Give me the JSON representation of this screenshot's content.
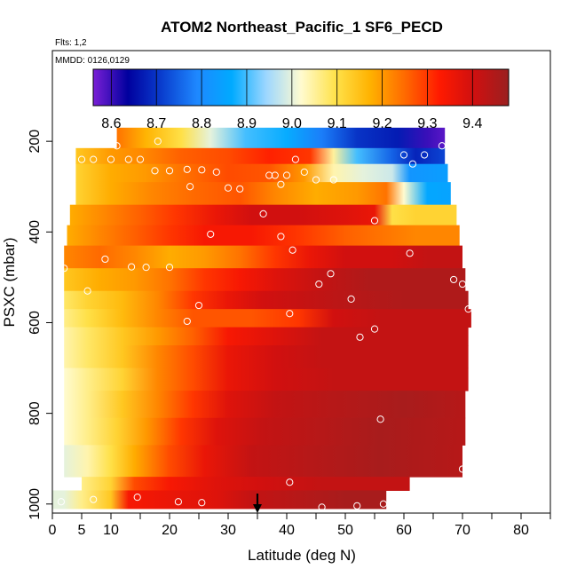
{
  "chart_data": {
    "type": "heatmap",
    "title": "ATOM2 Northeast_Pacific_1 SF6_PECD",
    "flts_label": "Flts: 1,2",
    "mmdd_label": "MMDD: 0126,0129",
    "xlabel": "Latitude (deg N)",
    "ylabel": "PSXC (mbar)",
    "xlim": [
      0,
      85
    ],
    "ylim": [
      1020,
      0
    ],
    "x_ticks": [
      0,
      5,
      10,
      20,
      30,
      40,
      50,
      60,
      70,
      80
    ],
    "y_ticks": [
      200,
      400,
      600,
      800,
      1000
    ],
    "arrow_latitude": 35,
    "colorbar": {
      "range": [
        8.56,
        9.48
      ],
      "ticks": [
        8.6,
        8.7,
        8.8,
        8.9,
        9.0,
        9.1,
        9.2,
        9.3,
        9.4
      ],
      "colors": [
        "#7a1fd6",
        "#00009e",
        "#0a3fcf",
        "#1e88ff",
        "#00aaff",
        "#9dd7ff",
        "#fffbd0",
        "#ffe24a",
        "#ffb200",
        "#ff6a00",
        "#ff1a00",
        "#cf1010",
        "#9a2020"
      ]
    },
    "rows": [
      {
        "p_top": 170,
        "p_bot": 215,
        "lat_start": 11,
        "lat_end": 67,
        "stops": [
          [
            11,
            9.24
          ],
          [
            16,
            9.17
          ],
          [
            22,
            9.1
          ],
          [
            27,
            9.0
          ],
          [
            33,
            8.9
          ],
          [
            40,
            8.87
          ],
          [
            46,
            8.78
          ],
          [
            52,
            8.7
          ],
          [
            59,
            8.67
          ],
          [
            64,
            8.6
          ],
          [
            67,
            8.58
          ]
        ]
      },
      {
        "p_top": 215,
        "p_bot": 250,
        "lat_start": 4,
        "lat_end": 67,
        "stops": [
          [
            4,
            9.14
          ],
          [
            10,
            9.2
          ],
          [
            16,
            9.22
          ],
          [
            22,
            9.26
          ],
          [
            30,
            9.28
          ],
          [
            37,
            9.32
          ],
          [
            44,
            9.3
          ],
          [
            48,
            9.05
          ],
          [
            52,
            8.9
          ],
          [
            58,
            8.75
          ],
          [
            62,
            8.68
          ],
          [
            67,
            8.72
          ]
        ]
      },
      {
        "p_top": 250,
        "p_bot": 290,
        "lat_start": 4,
        "lat_end": 67.5,
        "stops": [
          [
            4,
            9.12
          ],
          [
            10,
            9.18
          ],
          [
            16,
            9.2
          ],
          [
            22,
            9.24
          ],
          [
            30,
            9.28
          ],
          [
            37,
            9.27
          ],
          [
            43,
            9.2
          ],
          [
            48,
            9.04
          ],
          [
            53,
            9.0
          ],
          [
            58,
            8.98
          ],
          [
            61,
            8.82
          ],
          [
            67.5,
            8.84
          ]
        ]
      },
      {
        "p_top": 290,
        "p_bot": 340,
        "lat_start": 4,
        "lat_end": 68,
        "stops": [
          [
            4,
            9.12
          ],
          [
            10,
            9.18
          ],
          [
            17,
            9.22
          ],
          [
            24,
            9.25
          ],
          [
            32,
            9.27
          ],
          [
            38,
            9.22
          ],
          [
            45,
            9.18
          ],
          [
            52,
            9.2
          ],
          [
            57,
            9.24
          ],
          [
            60,
            9.02
          ],
          [
            64,
            8.86
          ],
          [
            68,
            8.85
          ]
        ]
      },
      {
        "p_top": 340,
        "p_bot": 385,
        "lat_start": 3,
        "lat_end": 69,
        "stops": [
          [
            3,
            9.18
          ],
          [
            9,
            9.22
          ],
          [
            15,
            9.26
          ],
          [
            21,
            9.3
          ],
          [
            28,
            9.36
          ],
          [
            34,
            9.4
          ],
          [
            42,
            9.4
          ],
          [
            50,
            9.38
          ],
          [
            55,
            9.36
          ],
          [
            58,
            9.1
          ],
          [
            62,
            9.12
          ],
          [
            69,
            9.12
          ]
        ]
      },
      {
        "p_top": 385,
        "p_bot": 430,
        "lat_start": 2.5,
        "lat_end": 69.5,
        "stops": [
          [
            2.5,
            9.18
          ],
          [
            8,
            9.22
          ],
          [
            14,
            9.26
          ],
          [
            20,
            9.3
          ],
          [
            26,
            9.34
          ],
          [
            34,
            9.34
          ],
          [
            42,
            9.3
          ],
          [
            50,
            9.26
          ],
          [
            56,
            9.24
          ],
          [
            62,
            9.22
          ],
          [
            69.5,
            9.22
          ]
        ]
      },
      {
        "p_top": 430,
        "p_bot": 480,
        "lat_start": 2,
        "lat_end": 70,
        "stops": [
          [
            2,
            9.22
          ],
          [
            8,
            9.25
          ],
          [
            14,
            9.22
          ],
          [
            20,
            9.18
          ],
          [
            26,
            9.2
          ],
          [
            32,
            9.24
          ],
          [
            38,
            9.3
          ],
          [
            44,
            9.36
          ],
          [
            50,
            9.4
          ],
          [
            58,
            9.4
          ],
          [
            64,
            9.42
          ],
          [
            70,
            9.42
          ]
        ]
      },
      {
        "p_top": 480,
        "p_bot": 530,
        "lat_start": 2,
        "lat_end": 70.5,
        "stops": [
          [
            2,
            9.14
          ],
          [
            8,
            9.18
          ],
          [
            14,
            9.2
          ],
          [
            20,
            9.24
          ],
          [
            26,
            9.3
          ],
          [
            32,
            9.34
          ],
          [
            38,
            9.38
          ],
          [
            46,
            9.42
          ],
          [
            54,
            9.45
          ],
          [
            62,
            9.45
          ],
          [
            70.5,
            9.45
          ]
        ]
      },
      {
        "p_top": 530,
        "p_bot": 570,
        "lat_start": 2,
        "lat_end": 71,
        "stops": [
          [
            2,
            9.08
          ],
          [
            6,
            9.12
          ],
          [
            12,
            9.16
          ],
          [
            18,
            9.22
          ],
          [
            24,
            9.3
          ],
          [
            30,
            9.36
          ],
          [
            36,
            9.4
          ],
          [
            44,
            9.42
          ],
          [
            52,
            9.44
          ],
          [
            60,
            9.45
          ],
          [
            71,
            9.45
          ]
        ]
      },
      {
        "p_top": 570,
        "p_bot": 610,
        "lat_start": 2,
        "lat_end": 71.5,
        "stops": [
          [
            2,
            9.06
          ],
          [
            6,
            9.1
          ],
          [
            12,
            9.16
          ],
          [
            18,
            9.22
          ],
          [
            24,
            9.27
          ],
          [
            34,
            9.27
          ],
          [
            42,
            9.3
          ],
          [
            48,
            9.4
          ],
          [
            56,
            9.42
          ],
          [
            64,
            9.42
          ],
          [
            71.5,
            9.42
          ]
        ]
      },
      {
        "p_top": 610,
        "p_bot": 650,
        "lat_start": 2,
        "lat_end": 71,
        "stops": [
          [
            2,
            9.04
          ],
          [
            6,
            9.08
          ],
          [
            12,
            9.14
          ],
          [
            18,
            9.2
          ],
          [
            24,
            9.26
          ],
          [
            30,
            9.34
          ],
          [
            38,
            9.38
          ],
          [
            46,
            9.42
          ],
          [
            56,
            9.42
          ],
          [
            71,
            9.42
          ]
        ]
      },
      {
        "p_top": 650,
        "p_bot": 700,
        "lat_start": 2,
        "lat_end": 71,
        "stops": [
          [
            2,
            9.04
          ],
          [
            6,
            9.08
          ],
          [
            12,
            9.14
          ],
          [
            18,
            9.22
          ],
          [
            24,
            9.28
          ],
          [
            30,
            9.36
          ],
          [
            38,
            9.4
          ],
          [
            46,
            9.42
          ],
          [
            56,
            9.42
          ],
          [
            71,
            9.42
          ]
        ]
      },
      {
        "p_top": 700,
        "p_bot": 750,
        "lat_start": 2,
        "lat_end": 71,
        "stops": [
          [
            2,
            9.02
          ],
          [
            6,
            9.06
          ],
          [
            12,
            9.12
          ],
          [
            18,
            9.22
          ],
          [
            24,
            9.28
          ],
          [
            30,
            9.36
          ],
          [
            38,
            9.4
          ],
          [
            48,
            9.42
          ],
          [
            60,
            9.42
          ],
          [
            71,
            9.42
          ]
        ]
      },
      {
        "p_top": 750,
        "p_bot": 810,
        "lat_start": 2,
        "lat_end": 70.5,
        "stops": [
          [
            2,
            9.02
          ],
          [
            6,
            9.06
          ],
          [
            12,
            9.14
          ],
          [
            18,
            9.22
          ],
          [
            24,
            9.3
          ],
          [
            30,
            9.38
          ],
          [
            38,
            9.42
          ],
          [
            48,
            9.44
          ],
          [
            60,
            9.46
          ],
          [
            70.5,
            9.44
          ]
        ]
      },
      {
        "p_top": 810,
        "p_bot": 870,
        "lat_start": 2,
        "lat_end": 70.5,
        "stops": [
          [
            2,
            9.02
          ],
          [
            6,
            9.06
          ],
          [
            11,
            9.12
          ],
          [
            16,
            9.2
          ],
          [
            22,
            9.3
          ],
          [
            28,
            9.38
          ],
          [
            36,
            9.42
          ],
          [
            46,
            9.44
          ],
          [
            56,
            9.46
          ],
          [
            70.5,
            9.44
          ]
        ]
      },
      {
        "p_top": 870,
        "p_bot": 940,
        "lat_start": 2,
        "lat_end": 70,
        "stops": [
          [
            2,
            9.0
          ],
          [
            6,
            9.04
          ],
          [
            10,
            9.1
          ],
          [
            14,
            9.18
          ],
          [
            20,
            9.28
          ],
          [
            26,
            9.36
          ],
          [
            34,
            9.42
          ],
          [
            44,
            9.44
          ],
          [
            56,
            9.46
          ],
          [
            70,
            9.44
          ]
        ]
      },
      {
        "p_top": 940,
        "p_bot": 970,
        "lat_start": 5,
        "lat_end": 61,
        "stops": [
          [
            5,
            9.06
          ],
          [
            10,
            9.12
          ],
          [
            14,
            9.28
          ],
          [
            20,
            9.34
          ],
          [
            28,
            9.38
          ],
          [
            36,
            9.4
          ],
          [
            46,
            9.42
          ],
          [
            56,
            9.42
          ],
          [
            61,
            9.42
          ]
        ]
      },
      {
        "p_top": 970,
        "p_bot": 1010,
        "lat_start": 0,
        "lat_end": 57,
        "stops": [
          [
            0,
            9.0
          ],
          [
            2,
            9.0
          ],
          [
            5,
            9.06
          ],
          [
            10,
            9.14
          ],
          [
            13,
            9.34
          ],
          [
            20,
            9.36
          ],
          [
            28,
            9.38
          ],
          [
            34,
            9.42
          ],
          [
            42,
            9.44
          ],
          [
            50,
            9.46
          ],
          [
            57,
            9.46
          ]
        ]
      }
    ],
    "points": [
      [
        11,
        210
      ],
      [
        18,
        200
      ],
      [
        60,
        230
      ],
      [
        61.5,
        250
      ],
      [
        63.5,
        230
      ],
      [
        66.5,
        210
      ],
      [
        5,
        240
      ],
      [
        7,
        240
      ],
      [
        10,
        240
      ],
      [
        13,
        240
      ],
      [
        15,
        240
      ],
      [
        41.5,
        240
      ],
      [
        17.5,
        265
      ],
      [
        20,
        265
      ],
      [
        23,
        262
      ],
      [
        25.5,
        263
      ],
      [
        28,
        268
      ],
      [
        37,
        275
      ],
      [
        38,
        275
      ],
      [
        40,
        275
      ],
      [
        43,
        268
      ],
      [
        45,
        285
      ],
      [
        48,
        285
      ],
      [
        23.5,
        300
      ],
      [
        30,
        303
      ],
      [
        32,
        305
      ],
      [
        39,
        295
      ],
      [
        36,
        360
      ],
      [
        27,
        405
      ],
      [
        39,
        410
      ],
      [
        55,
        375
      ],
      [
        41,
        440
      ],
      [
        61,
        447
      ],
      [
        2,
        480
      ],
      [
        9,
        460
      ],
      [
        13.5,
        477
      ],
      [
        16,
        478
      ],
      [
        20,
        478
      ],
      [
        45.5,
        515
      ],
      [
        47.5,
        492
      ],
      [
        68.5,
        505
      ],
      [
        70,
        515
      ],
      [
        6,
        530
      ],
      [
        25,
        562
      ],
      [
        40.5,
        580
      ],
      [
        23,
        597
      ],
      [
        51,
        548
      ],
      [
        52.5,
        632
      ],
      [
        55,
        614
      ],
      [
        71,
        570
      ],
      [
        56,
        813
      ],
      [
        70,
        923
      ],
      [
        40.5,
        952
      ],
      [
        14.5,
        985
      ],
      [
        21.5,
        995
      ],
      [
        25.5,
        997
      ],
      [
        46,
        1007
      ],
      [
        52,
        1004
      ],
      [
        56.5,
        1000
      ],
      [
        1.5,
        995
      ],
      [
        7,
        990
      ]
    ]
  }
}
